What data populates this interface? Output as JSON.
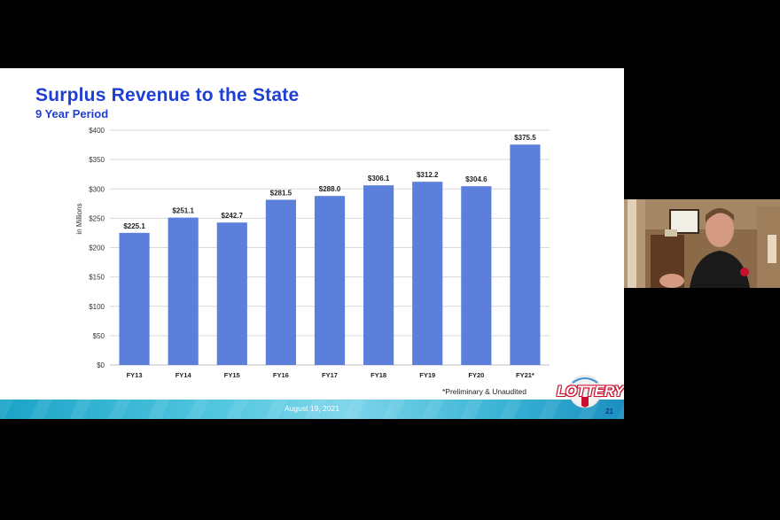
{
  "slide": {
    "title": "Surplus Revenue to the State",
    "subtitle": "9 Year Period",
    "footnote": "*Preliminary & Unaudited",
    "footer_date": "August 19, 2021",
    "page_number": "21",
    "logo_text": "LOTTERY"
  },
  "chart_data": {
    "type": "bar",
    "title": "Surplus Revenue to the State",
    "subtitle": "9 Year Period",
    "xlabel": "",
    "ylabel": "in Millions",
    "categories": [
      "FY13",
      "FY14",
      "FY15",
      "FY16",
      "FY17",
      "FY18",
      "FY19",
      "FY20",
      "FY21*"
    ],
    "values": [
      225.1,
      251.1,
      242.7,
      281.5,
      288.0,
      306.1,
      312.2,
      304.6,
      375.5
    ],
    "data_labels": [
      "$225.1",
      "$251.1",
      "$242.7",
      "$281.5",
      "$288.0",
      "$306.1",
      "$312.2",
      "$304.6",
      "$375.5"
    ],
    "y_ticks": [
      0,
      50,
      100,
      150,
      200,
      250,
      300,
      350,
      400
    ],
    "y_tick_labels": [
      "$0",
      "$50",
      "$100",
      "$150",
      "$200",
      "$250",
      "$300",
      "$350",
      "$400"
    ],
    "ylim": [
      0,
      400
    ],
    "grid": true,
    "legend": "none",
    "bar_color": "#5b7fdb"
  },
  "colors": {
    "title": "#1f3fd3",
    "bar": "#5b7fdb",
    "grid": "#d9d9d9"
  }
}
